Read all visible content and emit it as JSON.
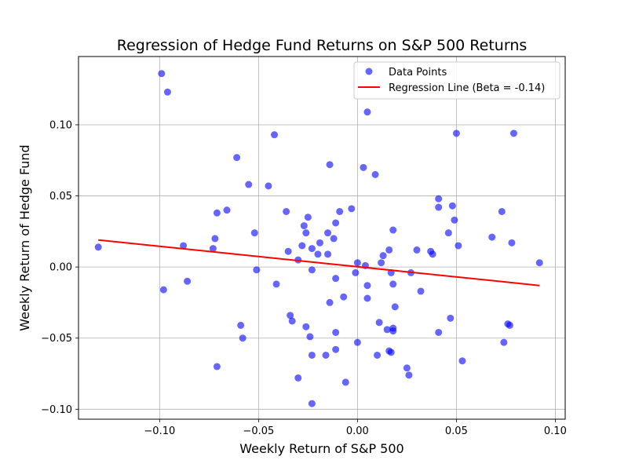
{
  "chart_data": {
    "type": "scatter",
    "title": "Regression of Hedge Fund Returns on S&P 500 Returns",
    "xlabel": "Weekly Return of S&P 500",
    "ylabel": "Weekly Return of Hedge Fund",
    "xlim": [
      -0.141,
      0.105
    ],
    "ylim": [
      -0.107,
      0.148
    ],
    "xticks": [
      -0.1,
      -0.05,
      0.0,
      0.05,
      0.1
    ],
    "xtick_labels": [
      "−0.10",
      "−0.05",
      "0.00",
      "0.05",
      "0.10"
    ],
    "yticks": [
      -0.1,
      -0.05,
      0.0,
      0.05,
      0.1
    ],
    "ytick_labels": [
      "−0.10",
      "−0.05",
      "0.00",
      "0.05",
      "0.10"
    ],
    "grid": true,
    "legend_position": "top-right",
    "series": [
      {
        "name": "Data Points",
        "kind": "scatter",
        "color": "#0000ff",
        "points": [
          [
            -0.131,
            0.014
          ],
          [
            -0.099,
            0.136
          ],
          [
            -0.096,
            0.123
          ],
          [
            -0.098,
            -0.016
          ],
          [
            -0.088,
            0.015
          ],
          [
            -0.086,
            -0.01
          ],
          [
            -0.073,
            0.013
          ],
          [
            -0.072,
            0.02
          ],
          [
            -0.071,
            0.038
          ],
          [
            -0.071,
            -0.07
          ],
          [
            -0.066,
            0.04
          ],
          [
            -0.061,
            0.077
          ],
          [
            -0.059,
            -0.041
          ],
          [
            -0.058,
            -0.05
          ],
          [
            -0.055,
            0.058
          ],
          [
            -0.052,
            0.024
          ],
          [
            -0.051,
            -0.002
          ],
          [
            -0.045,
            0.057
          ],
          [
            -0.042,
            0.093
          ],
          [
            -0.041,
            -0.012
          ],
          [
            -0.036,
            0.039
          ],
          [
            -0.035,
            0.011
          ],
          [
            -0.034,
            -0.034
          ],
          [
            -0.033,
            -0.038
          ],
          [
            -0.03,
            0.005
          ],
          [
            -0.03,
            -0.078
          ],
          [
            -0.028,
            0.015
          ],
          [
            -0.027,
            0.029
          ],
          [
            -0.026,
            0.024
          ],
          [
            -0.026,
            -0.042
          ],
          [
            -0.025,
            0.035
          ],
          [
            -0.024,
            -0.049
          ],
          [
            -0.023,
            0.013
          ],
          [
            -0.023,
            -0.002
          ],
          [
            -0.023,
            -0.062
          ],
          [
            -0.023,
            -0.096
          ],
          [
            -0.02,
            0.009
          ],
          [
            -0.019,
            0.017
          ],
          [
            -0.016,
            -0.062
          ],
          [
            -0.015,
            0.024
          ],
          [
            -0.015,
            0.009
          ],
          [
            -0.014,
            0.072
          ],
          [
            -0.014,
            -0.025
          ],
          [
            -0.012,
            0.02
          ],
          [
            -0.011,
            0.031
          ],
          [
            -0.011,
            -0.008
          ],
          [
            -0.011,
            -0.046
          ],
          [
            -0.011,
            -0.058
          ],
          [
            -0.009,
            0.039
          ],
          [
            -0.007,
            -0.021
          ],
          [
            -0.006,
            -0.081
          ],
          [
            -0.003,
            0.041
          ],
          [
            -0.001,
            -0.004
          ],
          [
            0.0,
            0.003
          ],
          [
            0.0,
            -0.053
          ],
          [
            0.003,
            0.07
          ],
          [
            0.004,
            0.001
          ],
          [
            0.005,
            -0.013
          ],
          [
            0.005,
            -0.022
          ],
          [
            0.005,
            0.109
          ],
          [
            0.009,
            0.065
          ],
          [
            0.01,
            -0.062
          ],
          [
            0.011,
            -0.039
          ],
          [
            0.012,
            0.003
          ],
          [
            0.013,
            0.008
          ],
          [
            0.015,
            -0.044
          ],
          [
            0.016,
            -0.059
          ],
          [
            0.016,
            0.012
          ],
          [
            0.017,
            -0.06
          ],
          [
            0.017,
            -0.004
          ],
          [
            0.018,
            0.026
          ],
          [
            0.018,
            -0.043
          ],
          [
            0.018,
            -0.045
          ],
          [
            0.018,
            -0.012
          ],
          [
            0.019,
            -0.028
          ],
          [
            0.025,
            -0.071
          ],
          [
            0.026,
            -0.076
          ],
          [
            0.027,
            -0.004
          ],
          [
            0.03,
            0.012
          ],
          [
            0.032,
            -0.017
          ],
          [
            0.037,
            0.011
          ],
          [
            0.038,
            0.009
          ],
          [
            0.041,
            0.048
          ],
          [
            0.041,
            0.042
          ],
          [
            0.041,
            -0.046
          ],
          [
            0.046,
            0.024
          ],
          [
            0.047,
            -0.036
          ],
          [
            0.048,
            0.043
          ],
          [
            0.049,
            0.033
          ],
          [
            0.05,
            0.094
          ],
          [
            0.051,
            0.015
          ],
          [
            0.053,
            -0.066
          ],
          [
            0.068,
            0.021
          ],
          [
            0.073,
            0.039
          ],
          [
            0.074,
            -0.053
          ],
          [
            0.076,
            -0.04
          ],
          [
            0.077,
            -0.041
          ],
          [
            0.078,
            0.017
          ],
          [
            0.079,
            0.094
          ],
          [
            0.092,
            0.003
          ]
        ]
      },
      {
        "name": "Regression Line (Beta = -0.14)",
        "kind": "line",
        "color": "#ff0000",
        "points": [
          [
            -0.131,
            0.019
          ],
          [
            0.092,
            -0.013
          ]
        ]
      }
    ]
  }
}
